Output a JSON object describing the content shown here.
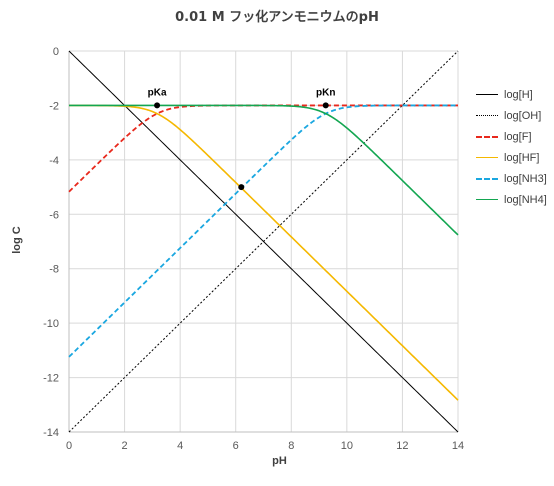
{
  "title": "0.01 M フッ化アンモニウムのpH",
  "chart_data": {
    "type": "line",
    "xlabel": "pH",
    "ylabel": "log C",
    "xlim": [
      0,
      14
    ],
    "ylim": [
      -14,
      0
    ],
    "xticks": [
      "0",
      "2",
      "4",
      "6",
      "8",
      "10",
      "12",
      "14"
    ],
    "yticks": [
      "0",
      "-2",
      "-4",
      "-6",
      "-8",
      "-10",
      "-12",
      "-14"
    ],
    "grid": true,
    "legend": "right",
    "total_concentration_log": -2,
    "pKa": 3.17,
    "pKn": 9.24,
    "pKw": 14,
    "series": [
      {
        "name": "log[H]",
        "color": "#000000",
        "dash": "solid"
      },
      {
        "name": "log[OH]",
        "color": "#000000",
        "dash": "dotted"
      },
      {
        "name": "log[F]",
        "color": "#e8281c",
        "dash": "dashed"
      },
      {
        "name": "log[HF]",
        "color": "#f5b800",
        "dash": "solid"
      },
      {
        "name": "log[NH3]",
        "color": "#1aa7e0",
        "dash": "dashed"
      },
      {
        "name": "log[NH4]",
        "color": "#13a651",
        "dash": "solid"
      }
    ],
    "annotations": [
      {
        "label": "pKa",
        "x": 3.17,
        "y": -2.0
      },
      {
        "label": "pKn",
        "x": 9.24,
        "y": -2.0
      }
    ],
    "markers": [
      {
        "x": 3.17,
        "y": -2.0
      },
      {
        "x": 9.24,
        "y": -2.0
      },
      {
        "x": 6.2,
        "y": -5.0
      }
    ]
  }
}
